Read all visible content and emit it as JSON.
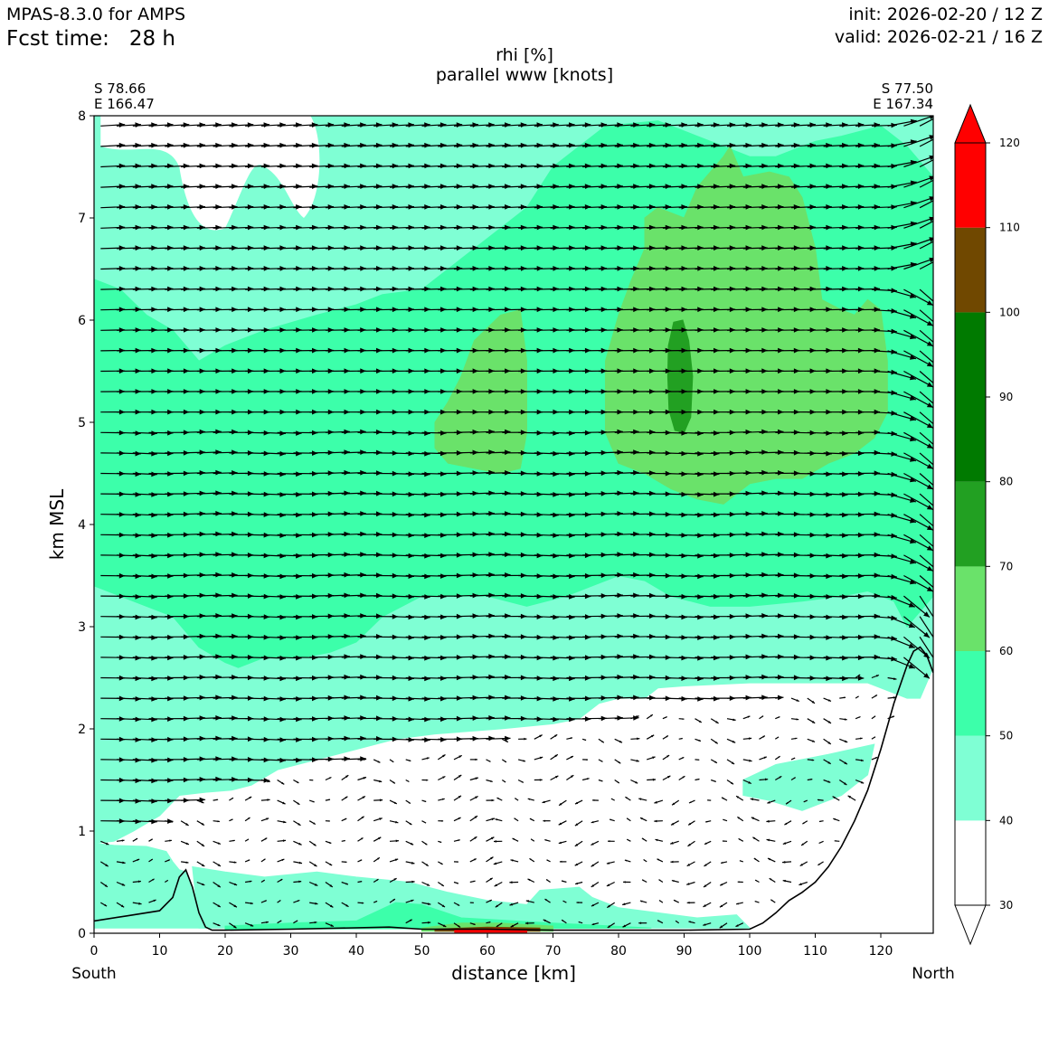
{
  "header": {
    "model": "MPAS-8.3.0 for AMPS",
    "fcst_label": "Fcst time:",
    "fcst_value": "28 h",
    "init": "init: 2026-02-20 / 12 Z",
    "valid": "valid: 2026-02-21 / 16 Z"
  },
  "chart_data": {
    "type": "heatmap",
    "title": "rhi [%]",
    "subtitle": "parallel www [knots]",
    "xlabel": "distance [km]",
    "ylabel": "km MSL",
    "xlim": [
      0,
      128
    ],
    "ylim": [
      0,
      8
    ],
    "x_ticks": [
      0,
      10,
      20,
      30,
      40,
      50,
      60,
      70,
      80,
      90,
      100,
      110,
      120
    ],
    "y_ticks": [
      0,
      1,
      2,
      3,
      4,
      5,
      6,
      7,
      8
    ],
    "left_endpoint": {
      "lat": "S 78.66",
      "lon": "E 166.47",
      "side": "South"
    },
    "right_endpoint": {
      "lat": "S 77.50",
      "lon": "E 167.34",
      "side": "North"
    },
    "colorbar": {
      "levels": [
        30,
        40,
        50,
        60,
        70,
        80,
        90,
        100,
        110,
        120
      ],
      "colors": [
        "#ffffff",
        "#7fffd4",
        "#3cffaa",
        "#6ae26a",
        "#22a022",
        "#007a00",
        "#007a00",
        "#704800",
        "#ff0000"
      ],
      "extend": "both"
    },
    "terrain": {
      "x": [
        0,
        5,
        10,
        12,
        13,
        14,
        15,
        16,
        17,
        18,
        20,
        30,
        45,
        50,
        60,
        70,
        80,
        90,
        100,
        102,
        104,
        106,
        108,
        110,
        112,
        114,
        116,
        118,
        120,
        122,
        124,
        125,
        126,
        127,
        128
      ],
      "y": [
        0.12,
        0.17,
        0.22,
        0.35,
        0.55,
        0.62,
        0.45,
        0.2,
        0.06,
        0.03,
        0.03,
        0.04,
        0.06,
        0.04,
        0.04,
        0.03,
        0.03,
        0.03,
        0.04,
        0.1,
        0.2,
        0.32,
        0.4,
        0.5,
        0.65,
        0.85,
        1.1,
        1.4,
        1.8,
        2.25,
        2.62,
        2.76,
        2.8,
        2.72,
        2.55
      ]
    },
    "rhi_regions": [
      {
        "level": 40,
        "comment": ""
      }
    ]
  }
}
